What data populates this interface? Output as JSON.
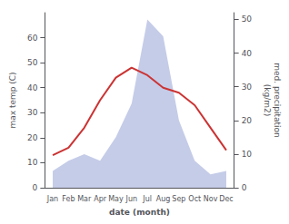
{
  "chart_data": {
    "type": "line",
    "categories": [
      "Jan",
      "Feb",
      "Mar",
      "Apr",
      "May",
      "Jun",
      "Jul",
      "Aug",
      "Sep",
      "Oct",
      "Nov",
      "Dec"
    ],
    "xlabel": "date (month)",
    "ylabel": "max temp (C)",
    "y2label": "med. precipitation\n(kg/m2)",
    "series": [
      {
        "type": "area",
        "axis": "y2",
        "color": "#c5cce8",
        "values": [
          5,
          8,
          10,
          8,
          15,
          25,
          50,
          45,
          20,
          8,
          4,
          5
        ]
      },
      {
        "type": "line",
        "color": "#cc3333",
        "values": [
          13,
          16,
          24,
          35,
          44,
          48,
          45,
          40,
          38,
          33,
          24,
          15
        ]
      }
    ],
    "ylim": [
      0,
      70
    ],
    "yticks": [
      0,
      10,
      20,
      30,
      40,
      50,
      60
    ],
    "y2lim": [
      0,
      52
    ],
    "y2ticks": [
      0,
      10,
      20,
      30,
      40,
      50
    ],
    "grid": false
  }
}
